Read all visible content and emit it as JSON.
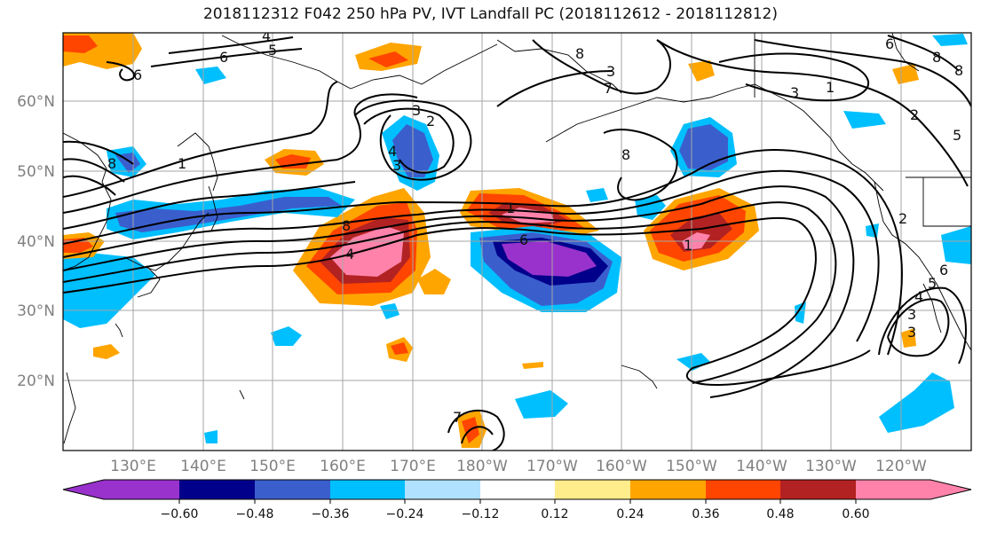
{
  "title": "2018112312 F042 250 hPa PV, IVT Landfall PC (2018112612 - 2018112812)",
  "map": {
    "lat_labels": [
      "60°N",
      "50°N",
      "40°N",
      "30°N",
      "20°N"
    ],
    "lon_labels": [
      "130°E",
      "140°E",
      "150°E",
      "160°E",
      "170°E",
      "180°W",
      "170°W",
      "160°W",
      "150°W",
      "140°W",
      "130°W",
      "120°W"
    ],
    "contour_labels": [
      "4",
      "5",
      "6",
      "6",
      "3",
      "2",
      "3",
      "4",
      "8",
      "1",
      "8",
      "6",
      "1",
      "3",
      "7",
      "8",
      "8",
      "3",
      "1",
      "2",
      "6",
      "8",
      "5",
      "2",
      "4",
      "5",
      "6",
      "8",
      "1",
      "3",
      "4",
      "3",
      "7"
    ],
    "grid": true
  },
  "colorbar": {
    "tick_labels": [
      "−0.60",
      "−0.48",
      "−0.36",
      "−0.24",
      "−0.12",
      "0.12",
      "0.24",
      "0.36",
      "0.48",
      "0.60"
    ],
    "colors": [
      "#9932CC",
      "#00008B",
      "#3A5FCD",
      "#00BFFF",
      "#B0E2FF",
      "#FFFFFF",
      "#FFEC8B",
      "#FFA500",
      "#FF4500",
      "#B22222",
      "#FF82AB"
    ],
    "extend": "both"
  }
}
